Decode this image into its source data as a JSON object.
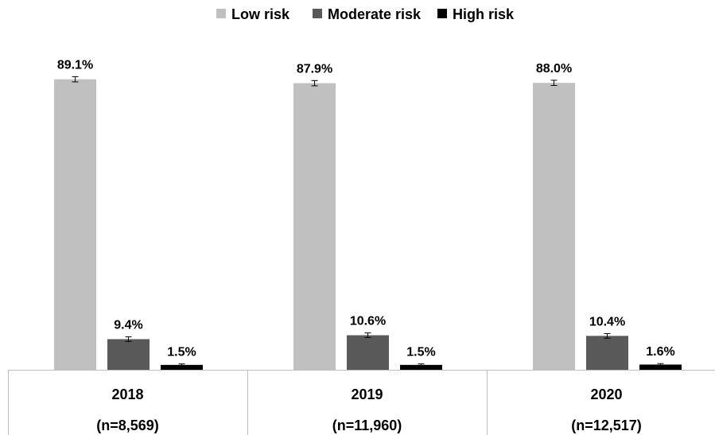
{
  "chart_data": {
    "type": "bar",
    "categories": [
      "2018",
      "2019",
      "2020"
    ],
    "category_notes": [
      "(n=8,569)",
      "(n=11,960)",
      "(n=12,517)"
    ],
    "series": [
      {
        "name": "Low risk",
        "color": "#c0c0c0",
        "values": [
          89.1,
          87.9,
          88.0
        ],
        "labels": [
          "89.1%",
          "87.9%",
          "88.0%"
        ],
        "error": [
          0.8,
          0.8,
          0.8
        ]
      },
      {
        "name": "Moderate risk",
        "color": "#595959",
        "values": [
          9.4,
          10.6,
          10.4
        ],
        "labels": [
          "9.4%",
          "10.6%",
          "10.4%"
        ],
        "error": [
          0.7,
          0.7,
          0.7
        ]
      },
      {
        "name": "High risk",
        "color": "#000000",
        "values": [
          1.5,
          1.5,
          1.6
        ],
        "labels": [
          "1.5%",
          "1.5%",
          "1.6%"
        ],
        "error": [
          0.3,
          0.3,
          0.3
        ]
      }
    ],
    "ylim": [
      0,
      100
    ],
    "error_bars": true,
    "grid": false,
    "legend_position": "top-center"
  }
}
